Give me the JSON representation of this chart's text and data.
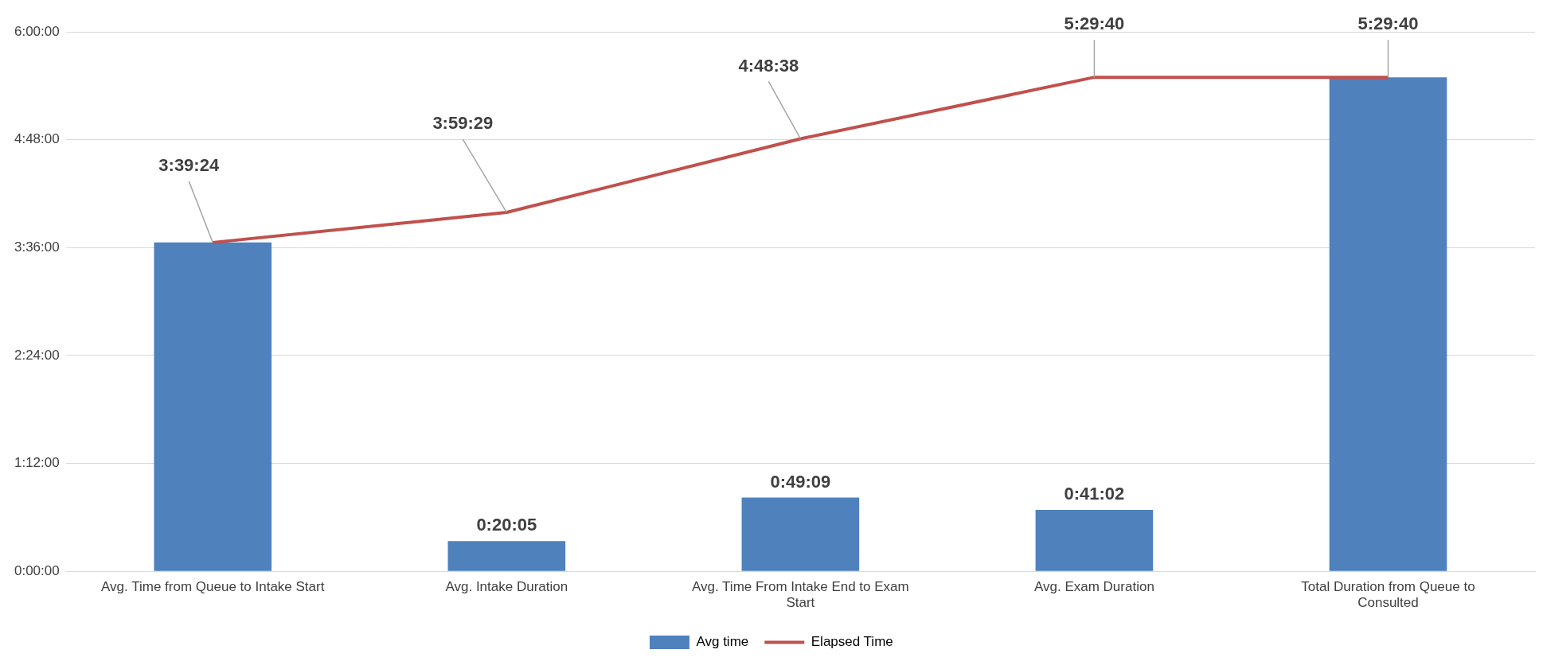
{
  "chart_data": {
    "type": "bar",
    "categories": [
      "Avg. Time from Queue to Intake Start",
      "Avg. Intake Duration",
      "Avg. Time From Intake End to Exam Start",
      "Avg. Exam Duration",
      "Total Duration from Queue to Consulted"
    ],
    "series": [
      {
        "name": "Avg time",
        "color": "#4f81bd",
        "values": [
          3.65667,
          0.33472,
          0.81917,
          0.68389,
          5.49444
        ],
        "value_labels": [
          null,
          "0:20:05",
          "0:49:09",
          "0:41:02",
          null
        ]
      },
      {
        "name": "Elapsed Time",
        "type": "line",
        "color": "#c0504d",
        "values": [
          3.65667,
          3.99139,
          4.81056,
          5.49444,
          5.49444
        ],
        "value_labels": [
          "3:39:24",
          "3:59:29",
          "4:48:38",
          "5:29:40",
          "5:29:40"
        ]
      }
    ],
    "ylim": [
      0,
      6
    ],
    "yticks": [
      {
        "value": 0,
        "label": "0:00:00"
      },
      {
        "value": 1.2,
        "label": "1:12:00"
      },
      {
        "value": 2.4,
        "label": "2:24:00"
      },
      {
        "value": 3.6,
        "label": "3:36:00"
      },
      {
        "value": 4.8,
        "label": "4:48:00"
      },
      {
        "value": 6,
        "label": "6:00:00"
      }
    ],
    "grid": "y",
    "legend": "bottom",
    "marker": "none",
    "line_style": "solid"
  }
}
